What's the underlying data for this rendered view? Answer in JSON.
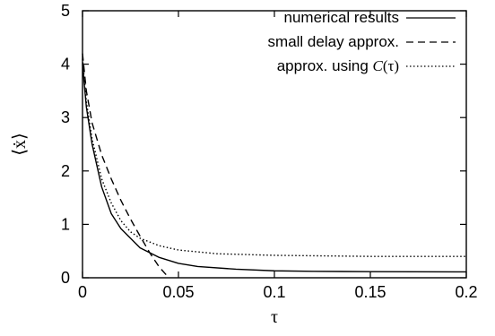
{
  "chart_data": {
    "type": "line",
    "title": "",
    "xlabel": "τ",
    "ylabel": "⟨ẋ⟩",
    "xlim": [
      0,
      0.2
    ],
    "ylim": [
      0,
      5
    ],
    "xticks": [
      0,
      0.05,
      0.1,
      0.15,
      0.2
    ],
    "xtick_labels": [
      "0",
      "0.05",
      "0.1",
      "0.15",
      "0.2"
    ],
    "yticks": [
      0,
      1,
      2,
      3,
      4,
      5
    ],
    "ytick_labels": [
      "0",
      "1",
      "2",
      "3",
      "4",
      "5"
    ],
    "grid": false,
    "legend_position": "top-right",
    "series": [
      {
        "name": "numerical results",
        "style": "solid",
        "color": "#000000",
        "x": [
          0,
          0.002,
          0.005,
          0.01,
          0.015,
          0.02,
          0.03,
          0.04,
          0.05,
          0.06,
          0.08,
          0.1,
          0.12,
          0.15,
          0.2
        ],
        "y": [
          4.0,
          3.2,
          2.5,
          1.7,
          1.2,
          0.92,
          0.56,
          0.38,
          0.27,
          0.21,
          0.16,
          0.13,
          0.12,
          0.115,
          0.11
        ]
      },
      {
        "name": "small delay approx.",
        "style": "dashed",
        "color": "#000000",
        "x": [
          0,
          0.002,
          0.005,
          0.01,
          0.015,
          0.02,
          0.025,
          0.03,
          0.035,
          0.04,
          0.045
        ],
        "y": [
          4.2,
          3.5,
          2.9,
          2.3,
          1.85,
          1.45,
          1.1,
          0.78,
          0.47,
          0.2,
          0.0
        ]
      },
      {
        "name_prefix": "approx. using ",
        "name_func": "C",
        "name_suffix": "(τ)",
        "style": "dotted",
        "color": "#000000",
        "x": [
          0,
          0.002,
          0.005,
          0.01,
          0.015,
          0.02,
          0.025,
          0.03,
          0.04,
          0.05,
          0.07,
          0.1,
          0.15,
          0.2
        ],
        "y": [
          4.1,
          3.3,
          2.6,
          1.85,
          1.4,
          1.07,
          0.86,
          0.74,
          0.6,
          0.52,
          0.45,
          0.42,
          0.4,
          0.4
        ]
      }
    ]
  }
}
